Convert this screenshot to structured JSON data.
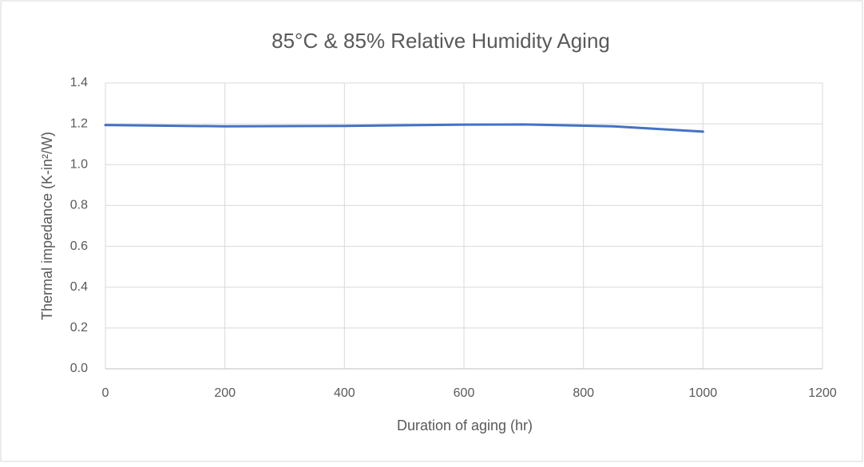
{
  "chart_data": {
    "type": "line",
    "title": "85°C & 85% Relative Humidity Aging",
    "x_label": "Duration of aging (hr)",
    "y_label": "Thermal impedance (K-in²/W)",
    "x": [
      0,
      200,
      400,
      600,
      700,
      850,
      1000
    ],
    "values": [
      1.194,
      1.188,
      1.19,
      1.196,
      1.197,
      1.188,
      1.162
    ],
    "color": "#4472c4",
    "xlim": [
      0,
      1200
    ],
    "xticks": [
      0,
      200,
      400,
      600,
      800,
      1000,
      1200
    ],
    "ylim": [
      0,
      1.4
    ],
    "yticks": [
      {
        "value": 0,
        "label": "0.0"
      },
      0.2,
      0.4,
      0.6,
      0.8,
      {
        "value": 1,
        "label": "1.0"
      },
      1.2,
      1.4
    ],
    "grid": true
  }
}
